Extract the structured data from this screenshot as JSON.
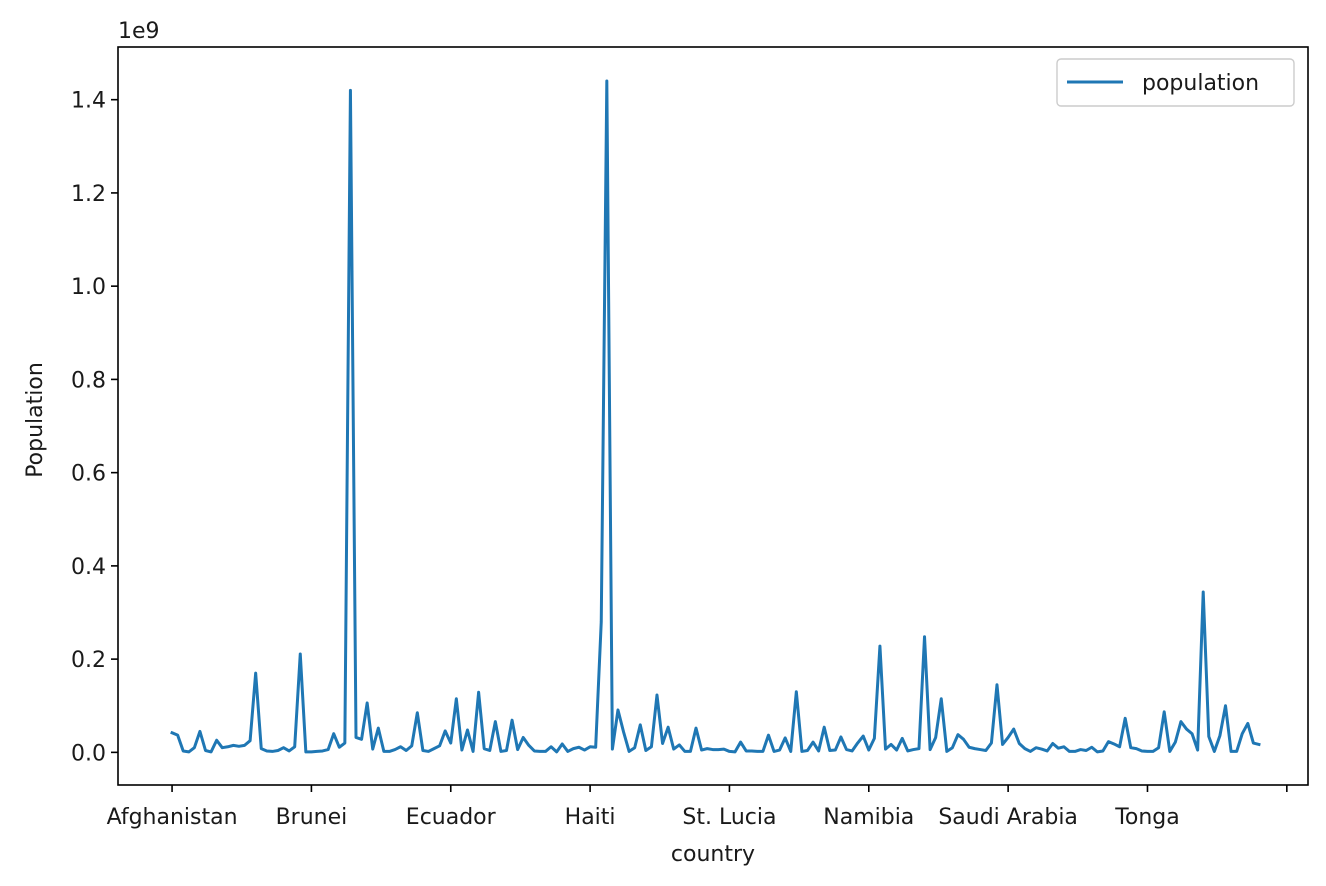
{
  "chart_data": {
    "type": "line",
    "title": "",
    "xlabel": "country",
    "ylabel": "Population",
    "y_offset_text": "1e9",
    "y_scale": 1000000000,
    "ylim": [
      -0.07,
      1.513
    ],
    "y_ticks": [
      0.0,
      0.2,
      0.4,
      0.6,
      0.8,
      1.0,
      1.2,
      1.4
    ],
    "y_tick_labels": [
      "0.0",
      "0.2",
      "0.4",
      "0.6",
      "0.8",
      "1.0",
      "1.2",
      "1.4"
    ],
    "xlim": [
      -9.7,
      203.8
    ],
    "x_ticks": [
      0,
      25,
      50,
      75,
      100,
      125,
      150,
      175,
      200
    ],
    "x_tick_labels": [
      "Afghanistan",
      "Brunei",
      "Ecuador",
      "Haiti",
      "St. Lucia",
      "Namibia",
      "Saudi Arabia",
      "Tonga",
      ""
    ],
    "grid": false,
    "legend": {
      "position": "top-right",
      "entries": [
        "population"
      ]
    },
    "series": [
      {
        "name": "population",
        "color": "#1f77b4",
        "values": [
          0.042,
          0.037,
          0.003,
          0.001,
          0.01,
          0.045,
          0.004,
          0.001,
          0.026,
          0.01,
          0.012,
          0.015,
          0.013,
          0.015,
          0.025,
          0.17,
          0.008,
          0.003,
          0.002,
          0.004,
          0.01,
          0.003,
          0.012,
          0.211,
          0.001,
          0.001,
          0.002,
          0.003,
          0.006,
          0.04,
          0.011,
          0.02,
          1.42,
          0.032,
          0.028,
          0.106,
          0.007,
          0.052,
          0.002,
          0.002,
          0.006,
          0.012,
          0.004,
          0.014,
          0.085,
          0.004,
          0.002,
          0.008,
          0.014,
          0.046,
          0.02,
          0.115,
          0.005,
          0.048,
          0.002,
          0.129,
          0.008,
          0.004,
          0.066,
          0.002,
          0.004,
          0.069,
          0.006,
          0.032,
          0.015,
          0.003,
          0.002,
          0.002,
          0.012,
          0.001,
          0.018,
          0.002,
          0.008,
          0.011,
          0.005,
          0.012,
          0.011,
          0.28,
          1.44,
          0.007,
          0.091,
          0.044,
          0.002,
          0.01,
          0.059,
          0.004,
          0.012,
          0.123,
          0.019,
          0.054,
          0.007,
          0.016,
          0.002,
          0.002,
          0.052,
          0.005,
          0.008,
          0.006,
          0.006,
          0.007,
          0.002,
          0.001,
          0.022,
          0.003,
          0.003,
          0.002,
          0.002,
          0.037,
          0.002,
          0.005,
          0.031,
          0.002,
          0.13,
          0.002,
          0.004,
          0.022,
          0.003,
          0.054,
          0.004,
          0.005,
          0.033,
          0.006,
          0.003,
          0.02,
          0.035,
          0.005,
          0.03,
          0.228,
          0.007,
          0.017,
          0.005,
          0.03,
          0.003,
          0.006,
          0.008,
          0.248,
          0.006,
          0.032,
          0.115,
          0.002,
          0.01,
          0.038,
          0.028,
          0.011,
          0.008,
          0.006,
          0.004,
          0.02,
          0.145,
          0.017,
          0.032,
          0.05,
          0.019,
          0.008,
          0.002,
          0.01,
          0.007,
          0.003,
          0.019,
          0.009,
          0.012,
          0.002,
          0.002,
          0.006,
          0.004,
          0.011,
          0.001,
          0.003,
          0.023,
          0.018,
          0.012,
          0.073,
          0.01,
          0.008,
          0.003,
          0.002,
          0.002,
          0.01,
          0.087,
          0.002,
          0.022,
          0.066,
          0.05,
          0.04,
          0.005,
          0.344,
          0.034,
          0.002,
          0.036,
          0.1,
          0.002,
          0.002,
          0.04,
          0.062,
          0.02,
          0.017
        ]
      }
    ]
  }
}
